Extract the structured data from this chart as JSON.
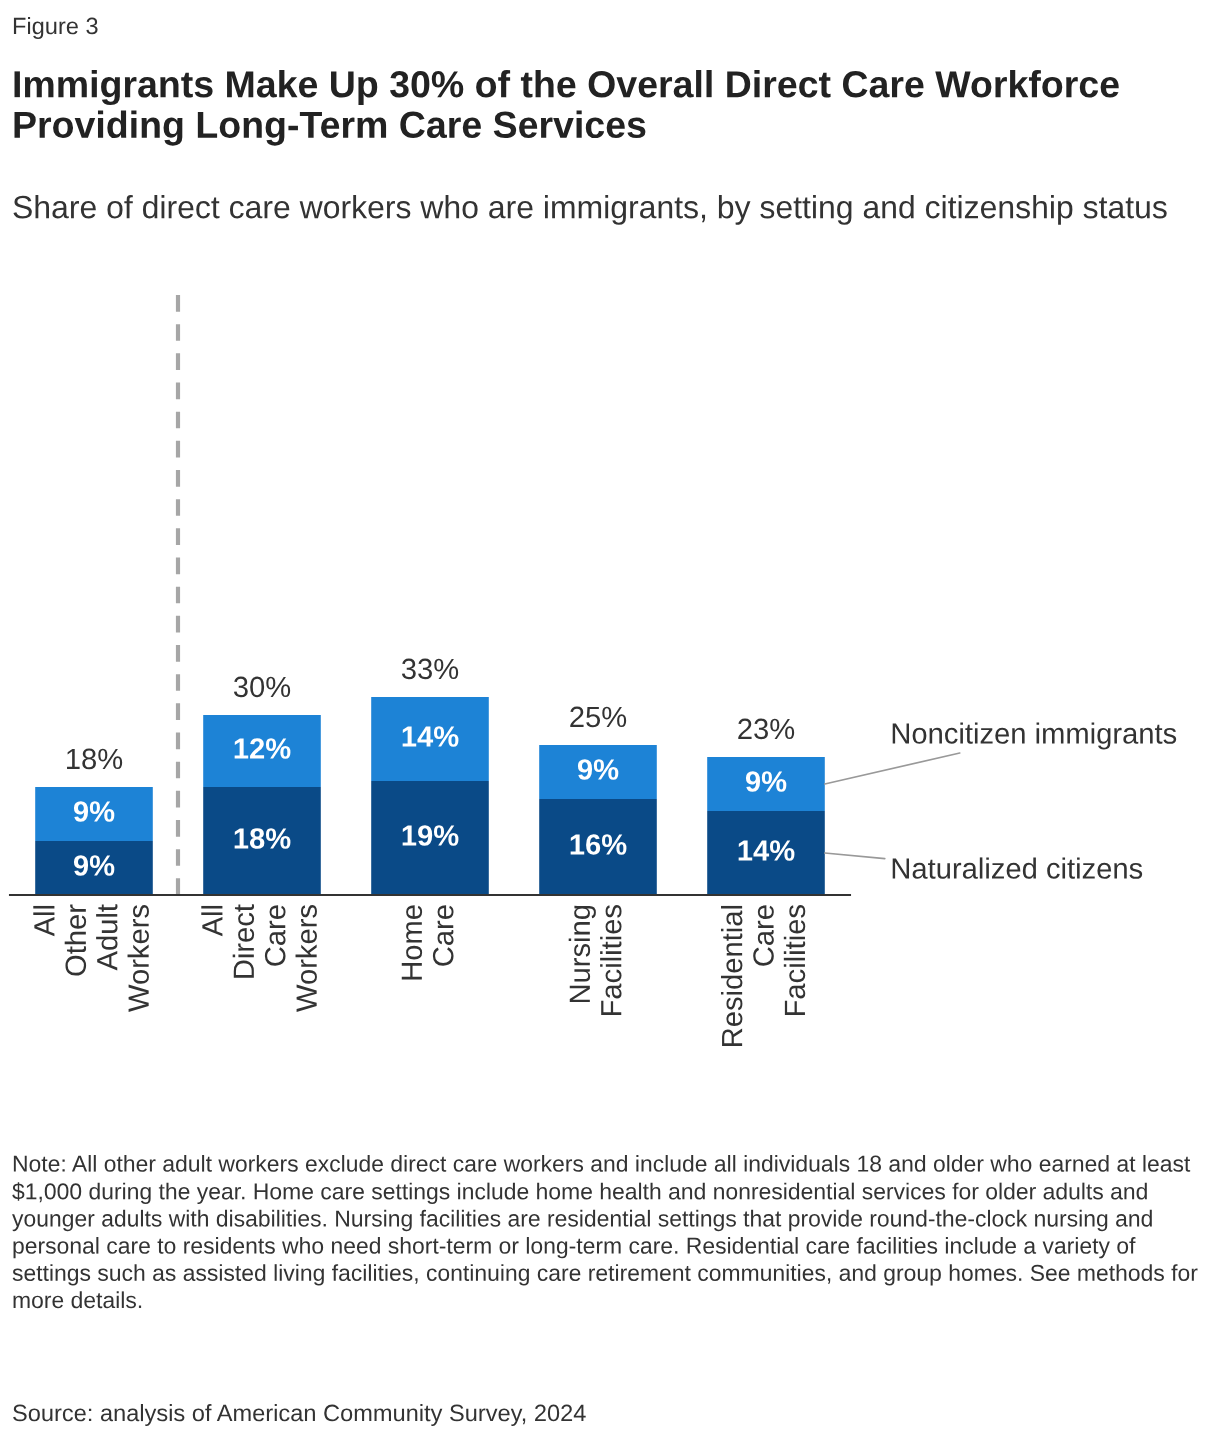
{
  "chart_data": {
    "type": "bar",
    "title": "Immigrants Make Up 30% of the Overall Direct Care Workforce Providing Long-Term Care Services",
    "subtitle": "Share of direct care workers who are immigrants, by setting and citizenship status",
    "categories": [
      "All Other Adult Workers",
      "All Direct Care Workers",
      "Home Care",
      "Nursing Facilities",
      "Residential Care Facilities"
    ],
    "stacked": true,
    "series": [
      {
        "name": "Naturalized citizens",
        "color": "#0a4a87",
        "values": [
          9,
          18,
          19,
          16,
          14
        ],
        "value_labels": [
          "9%",
          "18%",
          "19%",
          "16%",
          "14%"
        ]
      },
      {
        "name": "Noncitizen immigrants",
        "color": "#1d83d6",
        "values": [
          9,
          12,
          14,
          9,
          9
        ],
        "value_labels": [
          "9%",
          "12%",
          "14%",
          "9%",
          "9%"
        ]
      }
    ],
    "totals": [
      "18%",
      "30%",
      "33%",
      "25%",
      "23%"
    ],
    "ylim": [
      0,
      100
    ],
    "tick_labels": "x",
    "grid": false,
    "annotations": [
      "Figure 3",
      "Note: All other adult workers exclude direct care workers and include all individuals 18 and older who earned at least $1,000 during the year. Home care settings include home health and nonresidential services for older adults and younger adults with disabilities. Nursing facilities are residential settings that provide round-the-clock nursing and personal care to residents who need short-term or long-term care. Residential care facilities include a variety of settings such as assisted living facilities, continuing care retirement communities, and group homes. See methods for more details.",
      "Source: analysis of American Community Survey, 2024"
    ]
  }
}
